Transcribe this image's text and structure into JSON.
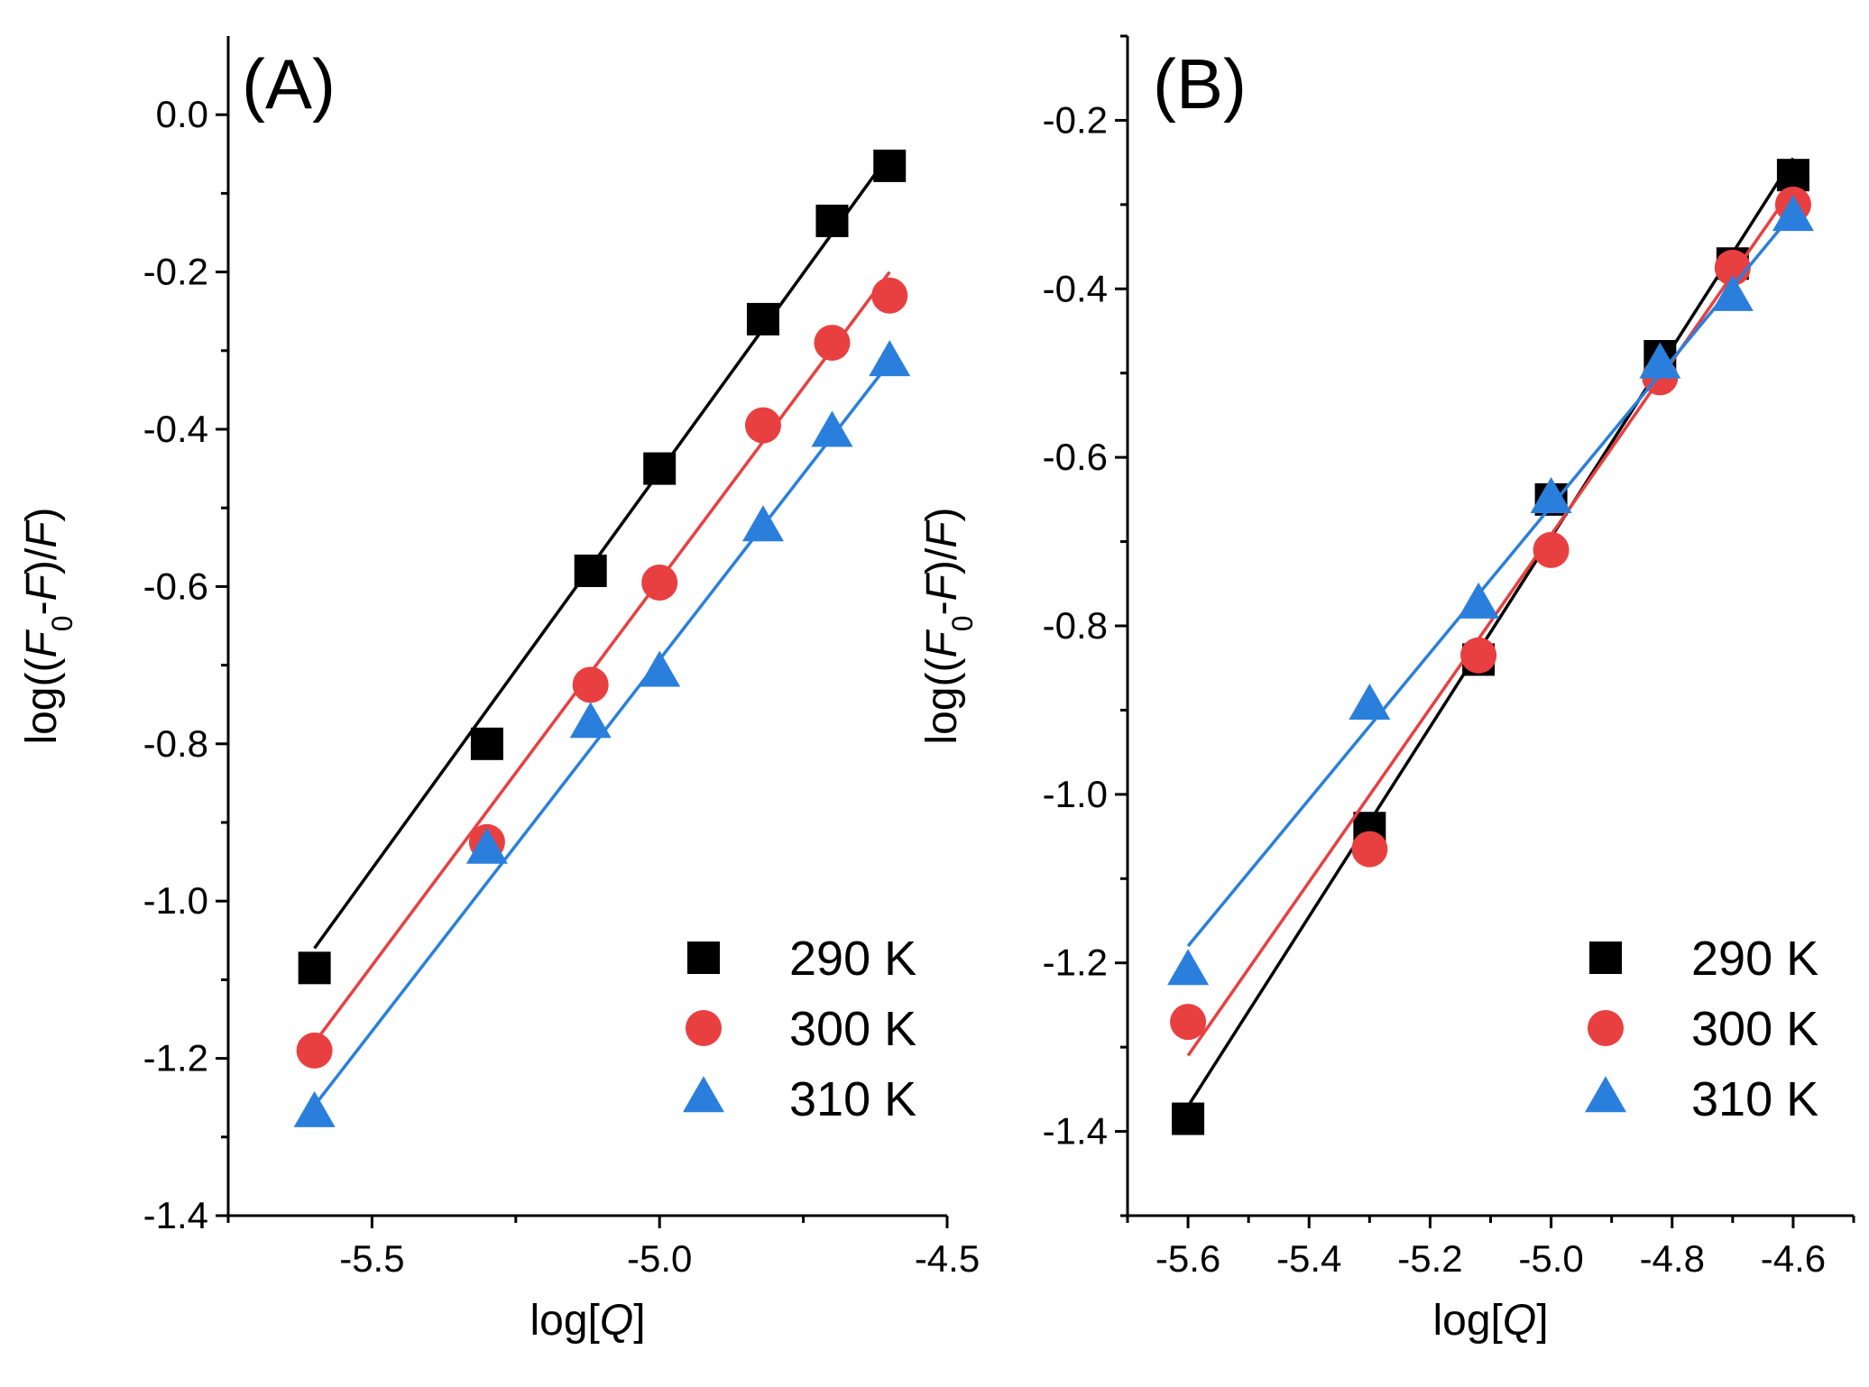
{
  "chart_data": [
    {
      "type": "scatter",
      "panel_label": "(A)",
      "xlabel": "log[Q]",
      "ylabel": "log((F0-F)/F)",
      "xlim": [
        -5.75,
        -4.5
      ],
      "ylim": [
        -1.4,
        0.1
      ],
      "xticks": [
        -5.5,
        -5.0,
        -4.5
      ],
      "xtick_labels": [
        "-5.5",
        "-5.0",
        "-4.5"
      ],
      "yticks": [
        0.0,
        -0.2,
        -0.4,
        -0.6,
        -0.8,
        -1.0,
        -1.2,
        -1.4
      ],
      "ytick_labels": [
        "0.0",
        "-0.2",
        "-0.4",
        "-0.6",
        "-0.8",
        "-1.0",
        "-1.2",
        "-1.4"
      ],
      "legend_position": "bottom-right",
      "grid": false,
      "x": [
        -5.6,
        -5.3,
        -5.12,
        -5.0,
        -4.82,
        -4.7,
        -4.6
      ],
      "series": [
        {
          "name": "290 K",
          "marker": "square",
          "color": "#000000",
          "values": [
            -1.085,
            -0.8,
            -0.58,
            -0.45,
            -0.26,
            -0.135,
            -0.065
          ],
          "fit": [
            [
              -5.6,
              -1.06
            ],
            [
              -4.6,
              -0.05
            ]
          ]
        },
        {
          "name": "300 K",
          "marker": "circle",
          "color": "#e84040",
          "values": [
            -1.19,
            -0.925,
            -0.725,
            -0.595,
            -0.395,
            -0.29,
            -0.23
          ],
          "fit": [
            [
              -5.6,
              -1.18
            ],
            [
              -4.6,
              -0.2
            ]
          ]
        },
        {
          "name": "310 K",
          "marker": "triangle",
          "color": "#2a7fdc",
          "values": [
            -1.27,
            -0.935,
            -0.775,
            -0.71,
            -0.525,
            -0.405,
            -0.315
          ],
          "fit": [
            [
              -5.6,
              -1.26
            ],
            [
              -4.6,
              -0.315
            ]
          ]
        }
      ]
    },
    {
      "type": "scatter",
      "panel_label": "(B)",
      "xlabel": "log[Q]",
      "ylabel": "log((F0-F)/F)",
      "xlim": [
        -5.7,
        -4.5
      ],
      "ylim": [
        -1.5,
        -0.1
      ],
      "xticks": [
        -5.6,
        -5.4,
        -5.2,
        -5.0,
        -4.8,
        -4.6
      ],
      "xtick_labels": [
        "-5.6",
        "-5.4",
        "-5.2",
        "-5.0",
        "-4.8",
        "-4.6"
      ],
      "yticks": [
        -0.2,
        -0.4,
        -0.6,
        -0.8,
        -1.0,
        -1.2,
        -1.4
      ],
      "ytick_labels": [
        "-0.2",
        "-0.4",
        "-0.6",
        "-0.8",
        "-1.0",
        "-1.2",
        "-1.4"
      ],
      "legend_position": "bottom-right",
      "grid": false,
      "x": [
        -5.6,
        -5.3,
        -5.12,
        -5.0,
        -4.82,
        -4.7,
        -4.6
      ],
      "series": [
        {
          "name": "290 K",
          "marker": "square",
          "color": "#000000",
          "values": [
            -1.385,
            -1.04,
            -0.84,
            -0.65,
            -0.48,
            -0.37,
            -0.265
          ],
          "fit": [
            [
              -5.6,
              -1.37
            ],
            [
              -4.6,
              -0.245
            ]
          ]
        },
        {
          "name": "300 K",
          "marker": "circle",
          "color": "#e84040",
          "values": [
            -1.27,
            -1.065,
            -0.835,
            -0.71,
            -0.505,
            -0.375,
            -0.3
          ],
          "fit": [
            [
              -5.6,
              -1.31
            ],
            [
              -4.6,
              -0.28
            ]
          ]
        },
        {
          "name": "310 K",
          "marker": "triangle",
          "color": "#2a7fdc",
          "values": [
            -1.21,
            -0.895,
            -0.775,
            -0.65,
            -0.49,
            -0.41,
            -0.315
          ],
          "fit": [
            [
              -5.6,
              -1.18
            ],
            [
              -4.6,
              -0.31
            ]
          ]
        }
      ]
    }
  ]
}
